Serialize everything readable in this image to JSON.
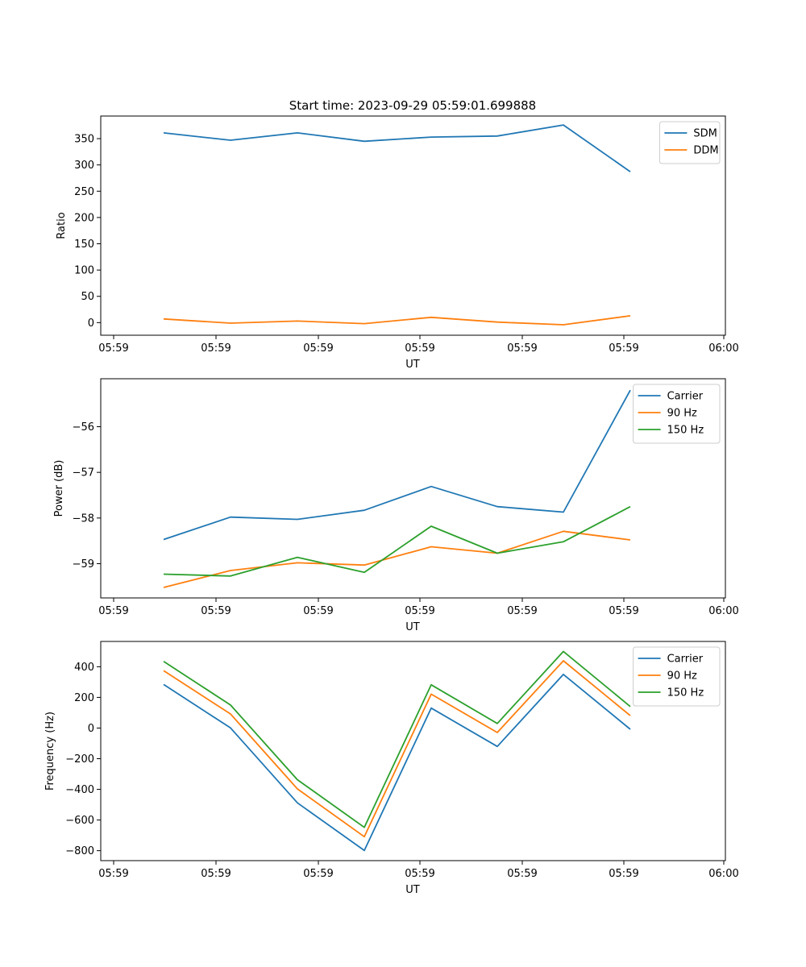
{
  "chart_data": [
    {
      "type": "line",
      "title": "Start time: 2023-09-29 05:59:01.699888",
      "xlabel": "UT",
      "ylabel": "Ratio",
      "x_ticks": [
        "05:59",
        "05:59",
        "05:59",
        "05:59",
        "05:59",
        "05:59",
        "06:00"
      ],
      "y_ticks": [
        0,
        50,
        100,
        150,
        200,
        250,
        300,
        350
      ],
      "ylim": [
        -24,
        393
      ],
      "legend": "top-right",
      "series": [
        {
          "name": "SDM",
          "color": "#1f77b4",
          "values": [
            361,
            347,
            361,
            345,
            353,
            355,
            376,
            287
          ]
        },
        {
          "name": "DDM",
          "color": "#ff7f0e",
          "values": [
            7,
            -1,
            3,
            -2,
            10,
            1,
            -4,
            13
          ]
        }
      ]
    },
    {
      "type": "line",
      "title": "",
      "xlabel": "UT",
      "ylabel": "Power (dB)",
      "x_ticks": [
        "05:59",
        "05:59",
        "05:59",
        "05:59",
        "05:59",
        "05:59",
        "06:00"
      ],
      "y_ticks": [
        -59,
        -58,
        -57,
        -56
      ],
      "ylim": [
        -59.75,
        -54.95
      ],
      "legend": "top-right",
      "series": [
        {
          "name": "Carrier",
          "color": "#1f77b4",
          "values": [
            -58.47,
            -57.98,
            -58.03,
            -57.83,
            -57.31,
            -57.75,
            -57.87,
            -55.2
          ]
        },
        {
          "name": "90 Hz",
          "color": "#ff7f0e",
          "values": [
            -59.52,
            -59.15,
            -58.98,
            -59.03,
            -58.63,
            -58.77,
            -58.29,
            -58.48
          ]
        },
        {
          "name": "150 Hz",
          "color": "#2ca02c",
          "values": [
            -59.23,
            -59.27,
            -58.86,
            -59.19,
            -58.18,
            -58.77,
            -58.52,
            -57.75
          ]
        }
      ]
    },
    {
      "type": "line",
      "title": "",
      "xlabel": "UT",
      "ylabel": "Frequency (Hz)",
      "x_ticks": [
        "05:59",
        "05:59",
        "05:59",
        "05:59",
        "05:59",
        "05:59",
        "06:00"
      ],
      "y_ticks": [
        -800,
        -600,
        -400,
        -200,
        0,
        200,
        400
      ],
      "ylim": [
        -865,
        565
      ],
      "legend": "top-right",
      "series": [
        {
          "name": "Carrier",
          "color": "#1f77b4",
          "values": [
            284,
            1,
            -488,
            -799,
            130,
            -120,
            350,
            -8
          ]
        },
        {
          "name": "90 Hz",
          "color": "#ff7f0e",
          "values": [
            374,
            92,
            -397,
            -709,
            221,
            -29,
            439,
            81
          ]
        },
        {
          "name": "150 Hz",
          "color": "#2ca02c",
          "values": [
            435,
            150,
            -337,
            -648,
            282,
            30,
            500,
            140
          ]
        }
      ]
    }
  ]
}
